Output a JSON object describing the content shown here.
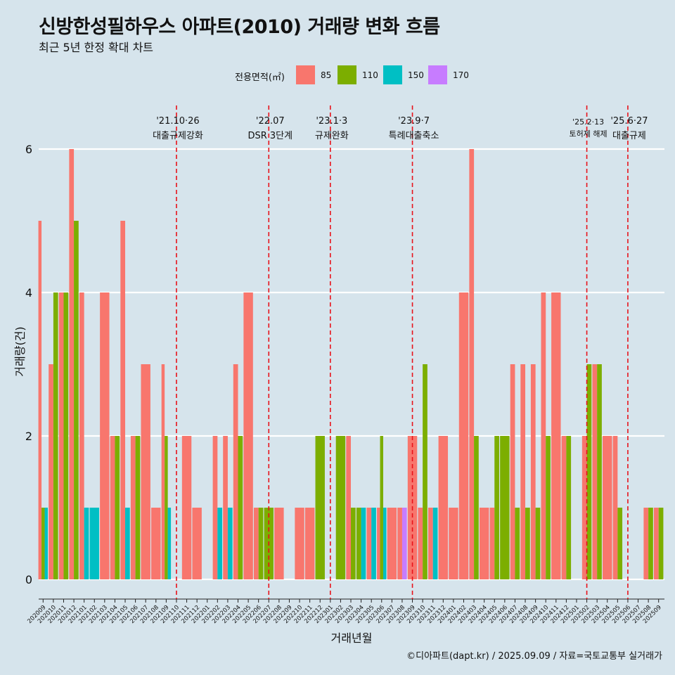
{
  "title": "신방한성필하우스 아파트(2010) 거래량 변화 흐름",
  "subtitle": "최근 5년 한정 확대 차트",
  "credit": "©디아파트(dapt.kr) / 2025.09.09 / 자료=국토교통부 실거래가",
  "legend": {
    "title": "전용면적(㎡)",
    "items": [
      {
        "label": "85",
        "color": "#F8766D"
      },
      {
        "label": "110",
        "color": "#7CAE00"
      },
      {
        "label": "150",
        "color": "#00BFC4"
      },
      {
        "label": "170",
        "color": "#C77CFF"
      }
    ]
  },
  "chart_data": {
    "type": "bar",
    "xlabel": "거래년월",
    "ylabel": "거래량(건)",
    "ylim": [
      0,
      6.4
    ],
    "yticks": [
      0,
      2,
      4,
      6
    ],
    "grid": true,
    "categories": [
      "202009",
      "202010",
      "202011",
      "202012",
      "202101",
      "202102",
      "202103",
      "202104",
      "202105",
      "202106",
      "202107",
      "202108",
      "202109",
      "202110",
      "202111",
      "202112",
      "202201",
      "202202",
      "202203",
      "202204",
      "202205",
      "202206",
      "202207",
      "202208",
      "202209",
      "202210",
      "202211",
      "202212",
      "202301",
      "202302",
      "202303",
      "202304",
      "202305",
      "202306",
      "202307",
      "202308",
      "202309",
      "202310",
      "202311",
      "202312",
      "202401",
      "202402",
      "202403",
      "202404",
      "202405",
      "202406",
      "202407",
      "202408",
      "202409",
      "202410",
      "202411",
      "202412",
      "202501",
      "202502",
      "202503",
      "202504",
      "202505",
      "202506",
      "202507",
      "202508",
      "202509"
    ],
    "series": [
      {
        "name": "85",
        "color": "#F8766D",
        "values": [
          5,
          3,
          4,
          6,
          4,
          0,
          4,
          2,
          5,
          2,
          3,
          1,
          3,
          0,
          2,
          1,
          0,
          2,
          2,
          3,
          4,
          1,
          0,
          1,
          0,
          1,
          1,
          0,
          0,
          0,
          2,
          0,
          1,
          1,
          1,
          1,
          2,
          1,
          1,
          2,
          1,
          4,
          6,
          1,
          1,
          0,
          3,
          3,
          3,
          4,
          4,
          2,
          0,
          2,
          3,
          2,
          2,
          0,
          0,
          1,
          1
        ]
      },
      {
        "name": "110",
        "color": "#7CAE00",
        "values": [
          1,
          4,
          4,
          5,
          0,
          0,
          0,
          2,
          0,
          2,
          0,
          0,
          2,
          0,
          0,
          0,
          0,
          0,
          0,
          2,
          0,
          1,
          1,
          0,
          0,
          0,
          0,
          2,
          0,
          2,
          1,
          1,
          0,
          2,
          0,
          0,
          0,
          3,
          0,
          0,
          0,
          0,
          2,
          0,
          2,
          2,
          1,
          1,
          1,
          2,
          0,
          2,
          0,
          3,
          3,
          0,
          1,
          0,
          0,
          1,
          1
        ]
      },
      {
        "name": "150",
        "color": "#00BFC4",
        "values": [
          1,
          0,
          0,
          0,
          1,
          1,
          0,
          0,
          1,
          0,
          0,
          0,
          1,
          0,
          0,
          0,
          0,
          1,
          1,
          0,
          0,
          0,
          0,
          0,
          0,
          0,
          0,
          0,
          0,
          0,
          0,
          1,
          1,
          1,
          0,
          0,
          0,
          0,
          1,
          0,
          0,
          0,
          0,
          0,
          0,
          0,
          0,
          0,
          0,
          0,
          0,
          0,
          0,
          0,
          0,
          0,
          0,
          0,
          0,
          0,
          0
        ]
      },
      {
        "name": "170",
        "color": "#C77CFF",
        "values": [
          0,
          0,
          0,
          0,
          0,
          0,
          0,
          0,
          0,
          0,
          0,
          0,
          0,
          0,
          0,
          0,
          0,
          0,
          0,
          0,
          0,
          0,
          0,
          0,
          0,
          0,
          0,
          0,
          0,
          0,
          0,
          0,
          0,
          0,
          0,
          1,
          0,
          0,
          0,
          0,
          0,
          0,
          0,
          0,
          0,
          0,
          0,
          0,
          0,
          0,
          0,
          0,
          0,
          0,
          0,
          0,
          0,
          0,
          0,
          0,
          0
        ]
      }
    ],
    "annotations": [
      {
        "x": "202110",
        "date": "'21.10·26",
        "text": "대출규제강화",
        "small": false
      },
      {
        "x": "202207",
        "date": "'22.07",
        "text": "DSR 3단계",
        "small": false
      },
      {
        "x": "202301",
        "date": "'23.1·3",
        "text": "규제완화",
        "small": false
      },
      {
        "x": "202309",
        "date": "'23.9·7",
        "text": "특례대출축소",
        "small": false
      },
      {
        "x": "202502",
        "date": "'25.2·13",
        "text": "토허제 해제",
        "small": true
      },
      {
        "x": "202506",
        "date": "'25.6·27",
        "text": "대출규제",
        "small": false
      }
    ]
  }
}
